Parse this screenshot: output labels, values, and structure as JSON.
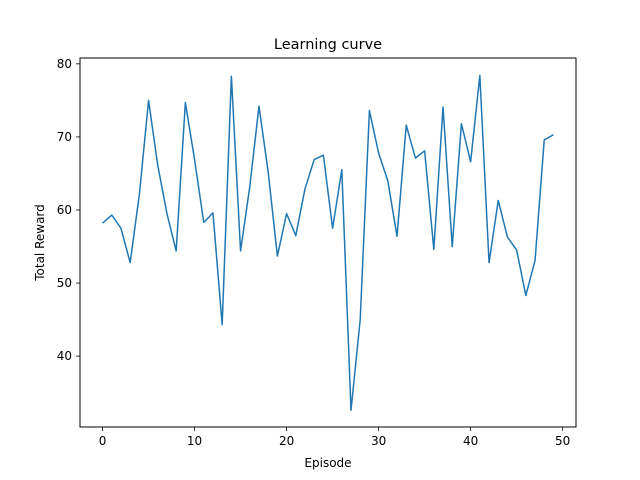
{
  "chart_data": {
    "type": "line",
    "title": "Learning curve",
    "xlabel": "Episode",
    "ylabel": "Total Reward",
    "xlim": [
      -2.45,
      51.45
    ],
    "ylim": [
      30.3,
      80.8
    ],
    "xticks": [
      0,
      10,
      20,
      30,
      40,
      50
    ],
    "yticks": [
      40,
      50,
      60,
      70,
      80
    ],
    "grid": false,
    "series": [
      {
        "color": "#1f77b4",
        "x": [
          0,
          1,
          2,
          3,
          4,
          5,
          6,
          7,
          8,
          9,
          10,
          11,
          12,
          13,
          14,
          15,
          16,
          17,
          18,
          19,
          20,
          21,
          22,
          23,
          24,
          25,
          26,
          27,
          28,
          29,
          30,
          31,
          32,
          33,
          34,
          35,
          36,
          37,
          38,
          39,
          40,
          41,
          42,
          43,
          44,
          45,
          46,
          47,
          48,
          49
        ],
        "values": [
          58.2,
          59.3,
          57.5,
          52.8,
          62.1,
          75.0,
          66.1,
          59.5,
          54.4,
          74.7,
          66.9,
          58.3,
          59.6,
          44.3,
          78.3,
          54.4,
          63.2,
          74.2,
          65.2,
          53.7,
          59.5,
          56.5,
          62.9,
          66.9,
          67.5,
          57.5,
          65.5,
          32.6,
          45.0,
          73.6,
          67.8,
          64.0,
          56.4,
          71.6,
          67.1,
          68.1,
          54.6,
          74.1,
          55.0,
          71.8,
          66.6,
          78.4,
          52.8,
          61.3,
          56.3,
          54.5,
          48.3,
          53.1,
          69.6,
          70.3
        ]
      }
    ]
  }
}
